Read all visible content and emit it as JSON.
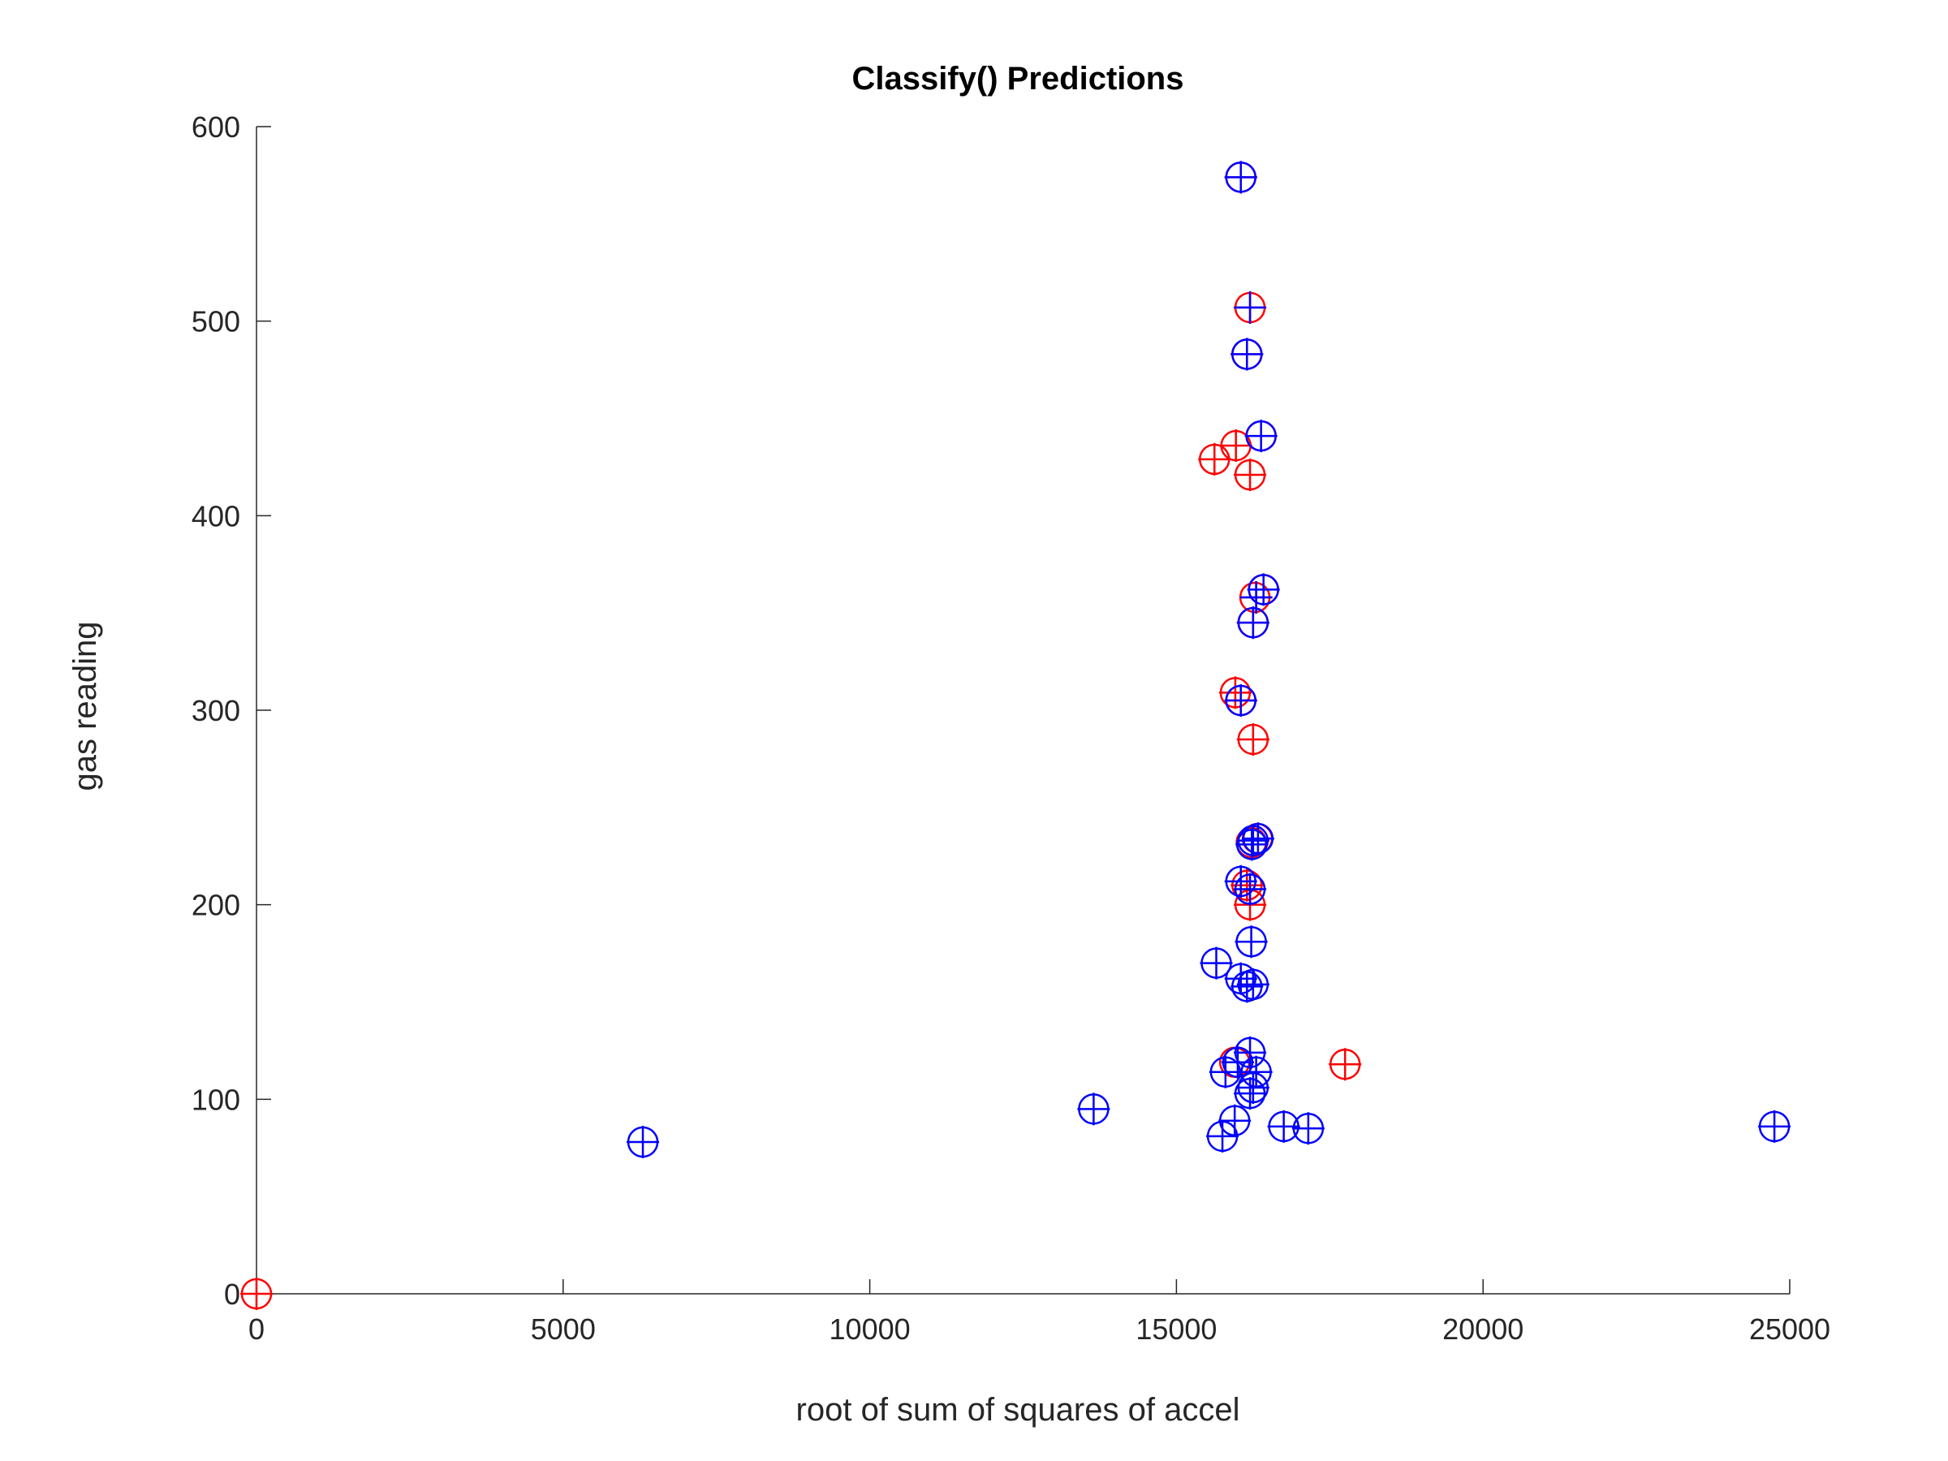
{
  "chart_data": {
    "type": "scatter",
    "title": "Classify() Predictions",
    "xlabel": "root of sum of squares of accel",
    "ylabel": "gas reading",
    "xlim": [
      0,
      25000
    ],
    "ylim": [
      0,
      600
    ],
    "xticks": [
      0,
      5000,
      10000,
      15000,
      20000,
      25000
    ],
    "yticks": [
      0,
      100,
      200,
      300,
      400,
      500,
      600
    ],
    "grid": false,
    "legend": "none",
    "colors": {
      "red": "#ff0000",
      "blue": "#0000ff",
      "axis": "#262626"
    },
    "series": [
      {
        "marker": "circle",
        "color": "#ff0000",
        "points": [
          [
            0,
            0
          ],
          [
            16050,
            574
          ],
          [
            16200,
            507
          ],
          [
            16150,
            483
          ],
          [
            15620,
            429
          ],
          [
            15970,
            436
          ],
          [
            16200,
            421
          ],
          [
            16380,
            441
          ],
          [
            16420,
            362
          ],
          [
            16280,
            358
          ],
          [
            16250,
            345
          ],
          [
            15960,
            309
          ],
          [
            16050,
            305
          ],
          [
            16250,
            285
          ],
          [
            16320,
            234
          ],
          [
            16220,
            232
          ],
          [
            16150,
            210
          ],
          [
            16200,
            200
          ],
          [
            15950,
            119
          ],
          [
            17750,
            118
          ]
        ]
      },
      {
        "marker": "plus",
        "color": "#ff0000",
        "points": [
          [
            0,
            0
          ],
          [
            16050,
            574
          ],
          [
            16200,
            507
          ],
          [
            16150,
            483
          ],
          [
            15620,
            429
          ],
          [
            15970,
            436
          ],
          [
            16200,
            421
          ],
          [
            16300,
            358
          ],
          [
            16250,
            345
          ],
          [
            15960,
            309
          ],
          [
            16050,
            305
          ],
          [
            16250,
            285
          ],
          [
            16150,
            210
          ],
          [
            16200,
            200
          ],
          [
            17750,
            118
          ]
        ]
      },
      {
        "marker": "circle",
        "color": "#0000ff",
        "points": [
          [
            16050,
            574
          ],
          [
            16150,
            483
          ],
          [
            16380,
            441
          ],
          [
            16420,
            362
          ],
          [
            16250,
            345
          ],
          [
            16050,
            305
          ],
          [
            16330,
            234
          ],
          [
            16250,
            233
          ],
          [
            16230,
            231
          ],
          [
            16050,
            212
          ],
          [
            16200,
            208
          ],
          [
            16220,
            181
          ],
          [
            15650,
            170
          ],
          [
            16050,
            162
          ],
          [
            16150,
            158
          ],
          [
            16250,
            159
          ],
          [
            16200,
            124
          ],
          [
            16000,
            119
          ],
          [
            15800,
            114
          ],
          [
            16300,
            114
          ],
          [
            16250,
            106
          ],
          [
            16200,
            103
          ],
          [
            13650,
            95
          ],
          [
            15950,
            89
          ],
          [
            16750,
            86
          ],
          [
            17150,
            85
          ],
          [
            15750,
            81
          ],
          [
            6300,
            78
          ],
          [
            24750,
            86
          ]
        ]
      },
      {
        "marker": "plus",
        "color": "#0000ff",
        "points": [
          [
            16050,
            574
          ],
          [
            16200,
            507
          ],
          [
            16150,
            483
          ],
          [
            16380,
            441
          ],
          [
            16420,
            362
          ],
          [
            16300,
            358
          ],
          [
            16250,
            345
          ],
          [
            16050,
            305
          ],
          [
            16330,
            234
          ],
          [
            16250,
            233
          ],
          [
            16230,
            231
          ],
          [
            16050,
            212
          ],
          [
            16200,
            208
          ],
          [
            16220,
            181
          ],
          [
            15650,
            170
          ],
          [
            16050,
            162
          ],
          [
            16150,
            158
          ],
          [
            16250,
            159
          ],
          [
            16200,
            124
          ],
          [
            16000,
            119
          ],
          [
            15800,
            114
          ],
          [
            16300,
            114
          ],
          [
            16250,
            106
          ],
          [
            16200,
            103
          ],
          [
            13650,
            95
          ],
          [
            15950,
            89
          ],
          [
            16750,
            86
          ],
          [
            17150,
            85
          ],
          [
            15750,
            81
          ],
          [
            6300,
            78
          ],
          [
            24750,
            86
          ]
        ]
      }
    ]
  }
}
